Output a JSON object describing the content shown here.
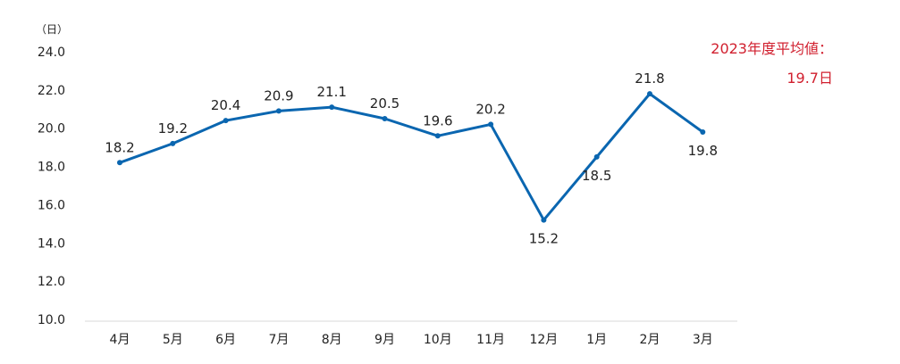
{
  "chart_data": {
    "type": "line",
    "categories": [
      "4月",
      "5月",
      "6月",
      "7月",
      "8月",
      "9月",
      "10月",
      "11月",
      "12月",
      "1月",
      "2月",
      "3月"
    ],
    "values": [
      18.2,
      19.2,
      20.4,
      20.9,
      21.1,
      20.5,
      19.6,
      20.2,
      15.2,
      18.5,
      21.8,
      19.8
    ],
    "value_labels": [
      "18.2",
      "19.2",
      "20.4",
      "20.9",
      "21.1",
      "20.5",
      "19.6",
      "20.2",
      "15.2",
      "18.5",
      "21.8",
      "19.8"
    ],
    "ylabel": "（日）",
    "ylim": [
      10,
      24
    ],
    "yticks": [
      "10.0",
      "12.0",
      "14.0",
      "16.0",
      "18.0",
      "20.0",
      "22.0",
      "24.0"
    ],
    "grid": false,
    "line_color": "#0a66b0",
    "annotation": {
      "line1": "2023年度平均値：",
      "line2": "19.7日",
      "color": "#d1202f"
    }
  }
}
